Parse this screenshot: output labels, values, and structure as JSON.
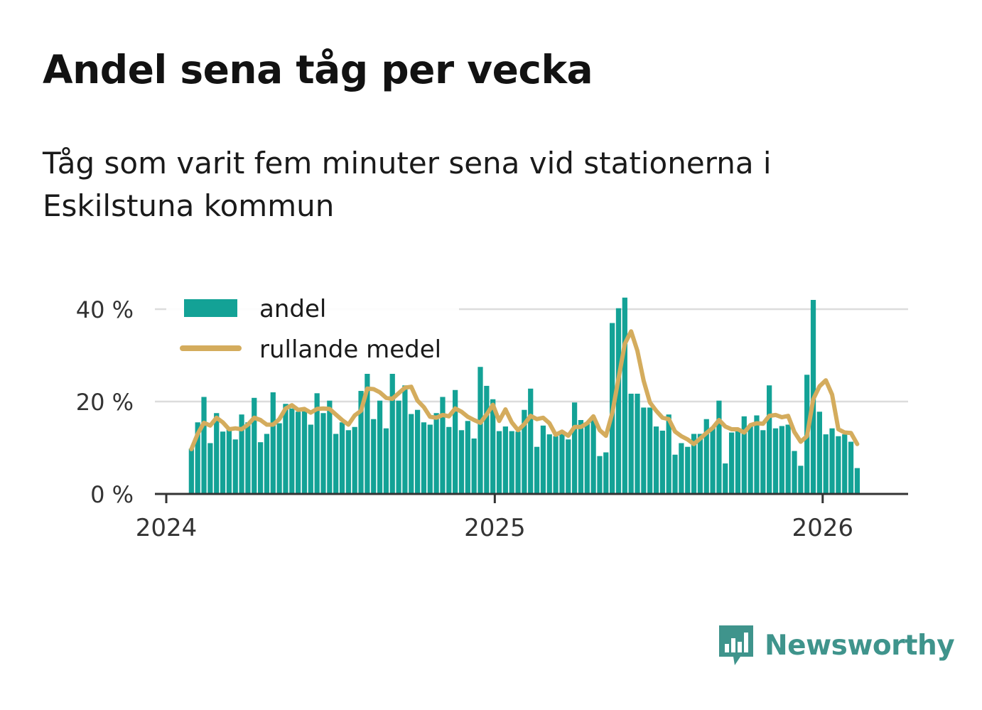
{
  "title": "Andel sena tåg per vecka",
  "subtitle": "Tåg som varit fem minuter sena vid stationerna i Eskilstuna kommun",
  "brand": "Newsworthy",
  "colors": {
    "bar": "#13a296",
    "line": "#d4ac5d",
    "grid": "#dcdcdc",
    "axis": "#333333",
    "brand": "#3f948c"
  },
  "chart_data": {
    "type": "bar",
    "title": "Andel sena tåg per vecka",
    "ylim": [
      0,
      42
    ],
    "y_ticks": [
      0,
      20,
      40
    ],
    "y_tick_labels": [
      "0 %",
      "20 %",
      "40 %"
    ],
    "x_tick_labels": [
      "2024",
      "2025",
      "2026"
    ],
    "x_tick_weeks": [
      0,
      52.3,
      104.5
    ],
    "legend": [
      "andel",
      "rullande medel"
    ],
    "legend_position": "top-left",
    "first_week_offset": 4,
    "series": [
      {
        "name": "andel",
        "values": [
          9.8,
          15.5,
          21,
          11,
          17.5,
          13.5,
          14,
          11.8,
          17.2,
          15.5,
          20.8,
          11.2,
          13,
          22,
          15.3,
          19.5,
          18.5,
          17.8,
          18.2,
          15,
          21.8,
          17.5,
          20.2,
          13,
          15.5,
          13.8,
          14.5,
          22.3,
          26,
          16.2,
          20.2,
          14.2,
          26,
          20.2,
          23.5,
          17.3,
          18.2,
          15.5,
          15,
          17.5,
          21,
          14.5,
          22.5,
          13.8,
          15.8,
          12,
          27.5,
          23.4,
          20.5,
          13.6,
          14.6,
          13.6,
          13.5,
          18.2,
          22.8,
          10.2,
          14.8,
          12.9,
          12.5,
          13,
          11.8,
          19.8,
          16,
          15.3,
          16,
          8.2,
          9,
          37,
          40.2,
          42.5,
          21.7,
          21.7,
          18.7,
          18.7,
          14.6,
          13.7,
          17.2,
          8.5,
          11,
          10.2,
          13,
          13,
          16.2,
          14.5,
          20.2,
          6.6,
          13.3,
          14.2,
          16.8,
          14.6,
          17,
          13.8,
          23.5,
          14.2,
          14.7,
          15,
          9.3,
          6.1,
          25.8,
          42,
          17.8,
          12.9,
          14.2,
          12.5,
          12.9,
          11.3,
          5.6
        ]
      },
      {
        "name": "rullande medel",
        "values": [
          9.7,
          13,
          15.4,
          14.8,
          16.5,
          15.5,
          14,
          14.2,
          14,
          15,
          16.5,
          16,
          15,
          15,
          16.2,
          18.5,
          19.2,
          18.2,
          18.4,
          17.6,
          18.4,
          18.5,
          18.4,
          17.2,
          16,
          15,
          17,
          18,
          22.8,
          22.7,
          22,
          20.8,
          20.6,
          21.8,
          23,
          23.2,
          20.2,
          18.8,
          16.7,
          16.5,
          17.1,
          16.8,
          18.5,
          17.8,
          16.7,
          16,
          15.4,
          17.2,
          19.3,
          15.8,
          18.3,
          15.5,
          13.8,
          15.1,
          16.9,
          16.2,
          16.5,
          15.3,
          12.8,
          13.5,
          12.6,
          14.5,
          14.5,
          15.3,
          16.8,
          13.8,
          12.6,
          17.5,
          25,
          32.5,
          35.2,
          31,
          24.5,
          19.8,
          18,
          16.5,
          16.2,
          13.5,
          12.5,
          11.8,
          10.8,
          12,
          13.2,
          14.3,
          16,
          14.6,
          14,
          14,
          13.3,
          14.9,
          15.3,
          15.2,
          16.9,
          17.1,
          16.6,
          16.9,
          13.4,
          11.3,
          12.5,
          20.5,
          23.3,
          24.6,
          21.5,
          14,
          13.3,
          13.2,
          10.8
        ]
      }
    ]
  }
}
